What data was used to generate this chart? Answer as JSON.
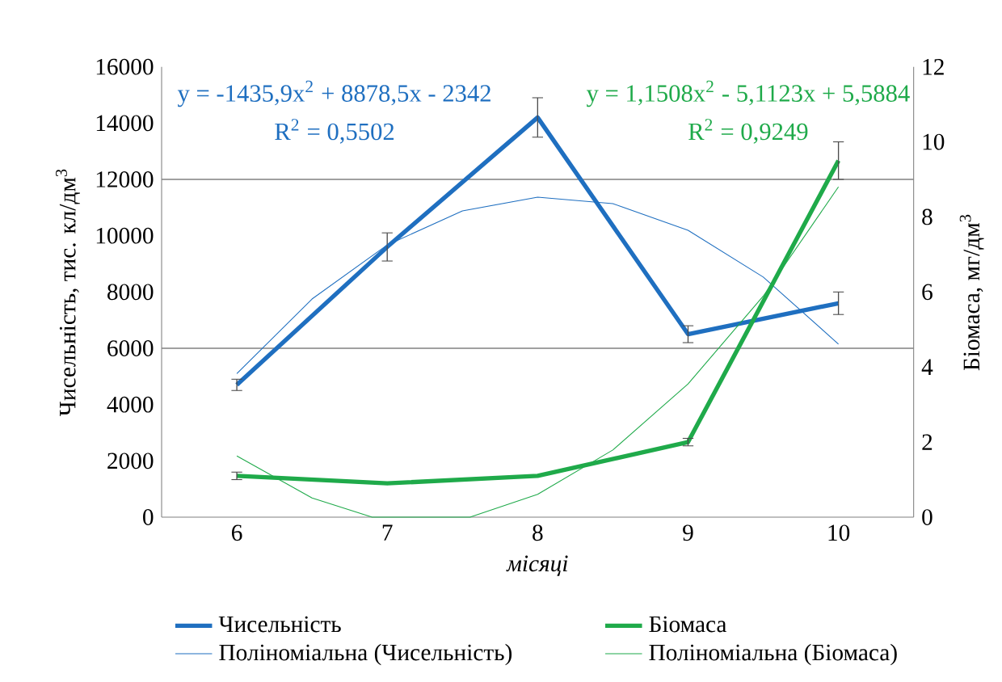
{
  "chart_data": {
    "type": "line",
    "x": [
      6,
      7,
      8,
      9,
      10
    ],
    "xlim": [
      5.5,
      10.5
    ],
    "xticks": [
      6,
      7,
      8,
      9,
      10
    ],
    "ylim": [
      0,
      16000
    ],
    "yticks": [
      0,
      2000,
      4000,
      6000,
      8000,
      10000,
      12000,
      14000,
      16000
    ],
    "y2lim": [
      0,
      12
    ],
    "y2ticks": [
      0,
      2,
      4,
      6,
      8,
      10,
      12
    ],
    "xlabel": "місяці",
    "ylabel": "Чисельність,  тис. кл/дм$^{3}$",
    "y2label": "Біомаса, мг/дм$^{3}$",
    "legend": "bottom",
    "series": [
      {
        "name": "Чисельність",
        "color": "#1f6fc0",
        "values": [
          4700,
          9600,
          14200,
          6500,
          7600
        ],
        "errors": [
          200,
          500,
          700,
          300,
          400
        ]
      },
      {
        "name": "Біомаса",
        "color": "#1faa4a",
        "axis": "y2",
        "values": [
          1.1,
          0.9,
          1.1,
          2.0,
          9.5
        ],
        "errors": [
          0.1,
          null,
          null,
          0.1,
          0.5
        ]
      },
      {
        "name": "Поліноміальна (Чисельність)",
        "color": "#1f6fc0",
        "x": [
          6,
          6.5,
          7,
          7.5,
          8,
          8.5,
          9,
          9.5,
          10
        ],
        "values": [
          5100,
          7750,
          9670,
          10880,
          11370,
          11140,
          10190,
          8530,
          6150
        ]
      },
      {
        "name": "Поліноміальна (Біомаса)",
        "color": "#1faa4a",
        "axis": "y2",
        "x": [
          6,
          6.5,
          6.9,
          7.55,
          8,
          8.5,
          9,
          9.5,
          10
        ],
        "values": [
          1.63,
          0.51,
          0,
          0,
          0.61,
          1.79,
          3.55,
          5.89,
          8.8
        ]
      }
    ],
    "annotations": [
      "y = -1435,9x$^{2}$ + 8878,5x - 2342",
      "R$^{2}$ = 0,5502",
      "y = 1,1508x$^{2}$ - 5,1123x + 5,5884",
      "R$^{2}$ = 0,9249"
    ],
    "ref_lines": [
      {
        "axis": "y",
        "value": 6000,
        "color": "#808080"
      },
      {
        "axis": "y",
        "value": 12000,
        "color": "#808080"
      }
    ]
  }
}
